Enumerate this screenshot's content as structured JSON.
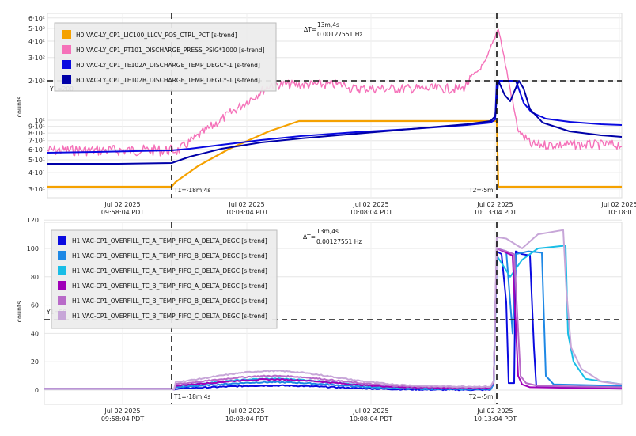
{
  "chart_data": [
    {
      "type": "line",
      "yscale": "log",
      "ylabel": "counts",
      "ylim": [
        280,
        600
      ],
      "yticks": [
        {
          "value": 300,
          "label": "3·10¹"
        },
        {
          "value": 400,
          "label": "4·10¹"
        },
        {
          "value": 500,
          "label": "5·10¹"
        },
        {
          "value": 600,
          "label": "6·10¹"
        },
        {
          "value": 700,
          "label": "7·10¹"
        },
        {
          "value": 800,
          "label": "8·10¹"
        },
        {
          "value": 900,
          "label": "9·10¹"
        },
        {
          "value": 1000,
          "label": "10²"
        },
        {
          "value": 2000,
          "label": "2·10²"
        },
        {
          "value": 3000,
          "label": "3·10²"
        },
        {
          "value": 4000,
          "label": "4·10²"
        },
        {
          "value": 5000,
          "label": "5·10²"
        },
        {
          "value": 6000,
          "label": "6·10²"
        }
      ],
      "xticks": [
        {
          "line1": "Jul 02 2025",
          "line2": "09:58:04 PDT"
        },
        {
          "line1": "Jul 02 2025",
          "line2": "10:03:04 PDT"
        },
        {
          "line1": "Jul 02 2025",
          "line2": "10:08:04 PDT"
        },
        {
          "line1": "Jul 02 2025",
          "line2": "10:13:04 PDT"
        },
        {
          "line1": "Jul 02 2025",
          "line2": "10:18:0"
        }
      ],
      "legend": [
        {
          "name": "H0:VAC-LY_CP1_LIC100_LLCV_POS_CTRL_PCT [s-trend]",
          "color": "#f5a100"
        },
        {
          "name": "H0:VAC-LY_CP1_PT101_DISCHARGE_PRESS_PSIG*1000 [s-trend]",
          "color": "#f571b9"
        },
        {
          "name": "H0:VAC-LY_CP1_TE102A_DISCHARGE_TEMP_DEGC*-1 [s-trend]",
          "color": "#0a0ae0"
        },
        {
          "name": "H0:VAC-LY_CP1_TE102B_DISCHARGE_TEMP_DEGC*-1 [s-trend]",
          "color": "#0000a8"
        }
      ],
      "cursor_y_label": "Y1=200",
      "t1_label": "T1=-18m,4s",
      "t2_label": "T2=-5m",
      "delta_label": "ΔT=",
      "delta_time": "13m,4s",
      "delta_freq": "0.00127551 Hz"
    },
    {
      "type": "line",
      "ylabel": "counts",
      "ylim": [
        -10,
        120
      ],
      "yticks": [
        {
          "value": 0,
          "label": "0"
        },
        {
          "value": 20,
          "label": "20"
        },
        {
          "value": 40,
          "label": "40"
        },
        {
          "value": 60,
          "label": "60"
        },
        {
          "value": 80,
          "label": "80"
        },
        {
          "value": 100,
          "label": "100"
        },
        {
          "value": 120,
          "label": "120"
        }
      ],
      "xticks": [
        {
          "line1": "Jul 02 2025",
          "line2": "09:58:04 PDT"
        },
        {
          "line1": "Jul 02 2025",
          "line2": "10:03:04 PDT"
        },
        {
          "line1": "Jul 02 2025",
          "line2": "10:08:04 PDT"
        },
        {
          "line1": "Jul 02 2025",
          "line2": "10:13:04 PDT"
        }
      ],
      "legend": [
        {
          "name": "H1:VAC-CP1_OVERFILL_TC_A_TEMP_FIFO_A_DELTA_DEGC [s-trend]",
          "color": "#0a0ae0"
        },
        {
          "name": "H1:VAC-CP1_OVERFILL_TC_A_TEMP_FIFO_B_DELTA_DEGC [s-trend]",
          "color": "#1e88e5"
        },
        {
          "name": "H1:VAC-CP1_OVERFILL_TC_A_TEMP_FIFO_C_DELTA_DEGC [s-trend]",
          "color": "#19bde6"
        },
        {
          "name": "H1:VAC-CP1_OVERFILL_TC_B_TEMP_FIFO_A_DELTA_DEGC [s-trend]",
          "color": "#a000b8"
        },
        {
          "name": "H1:VAC-CP1_OVERFILL_TC_B_TEMP_FIFO_B_DELTA_DEGC [s-trend]",
          "color": "#b86ac8"
        },
        {
          "name": "H1:VAC-CP1_OVERFILL_TC_B_TEMP_FIFO_C_DELTA_DEGC [s-trend]",
          "color": "#c7a6d8"
        }
      ],
      "cursor_y_label": "Y1=50",
      "t1_label": "T1=-18m,4s",
      "t2_label": "T2=-5m",
      "delta_label": "ΔT=",
      "delta_time": "13m,4s",
      "delta_freq": "0.00127551 Hz"
    }
  ]
}
